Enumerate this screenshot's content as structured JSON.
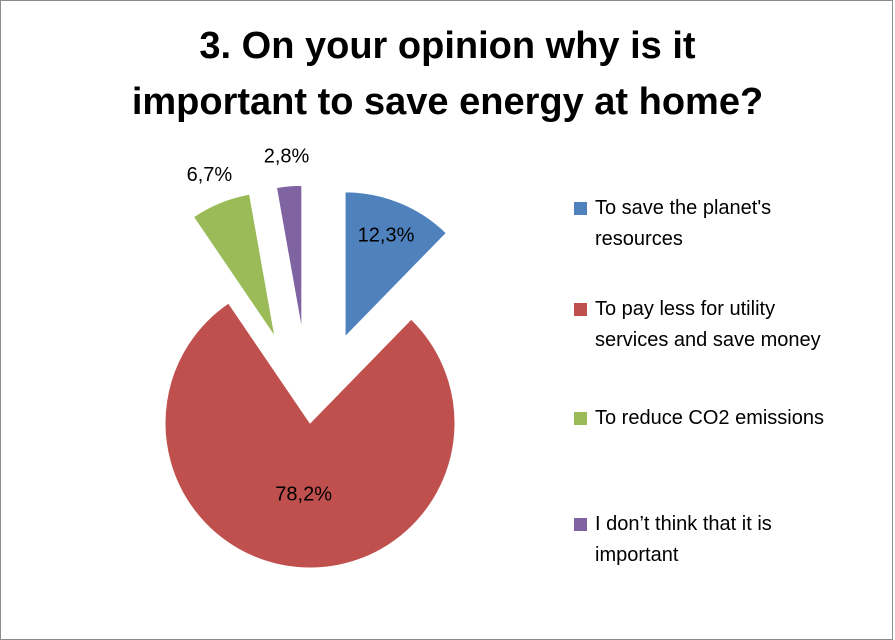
{
  "title": {
    "line1": "3. On your opinion why is it",
    "line2": "important to save energy at home?"
  },
  "chart_data": {
    "type": "pie",
    "title": "3. On your opinion why is it important to save energy at home?",
    "categories": [
      "To save the planet's resources",
      "To pay less for utility services and save money",
      "To reduce CO2 emissions",
      "I don’t think that it is important"
    ],
    "values": [
      12.3,
      78.2,
      6.7,
      2.8
    ],
    "data_labels": [
      "12,3%",
      "78,2%",
      "6,7%",
      "2,8%"
    ],
    "colors": [
      "#4f81bd",
      "#c0504d",
      "#9bbb59",
      "#8064a2"
    ],
    "exploded": true,
    "legend_position": "right"
  },
  "legend": [
    {
      "line1": "To save the planet's",
      "line2": "resources",
      "color": "#4f81bd"
    },
    {
      "line1": "To pay less for utility",
      "line2": "services and save money",
      "color": "#c0504d"
    },
    {
      "line1": "To reduce CO2 emissions",
      "line2": "",
      "color": "#9bbb59"
    },
    {
      "line1": "I don’t think that it is",
      "line2": "important",
      "color": "#8064a2"
    }
  ]
}
